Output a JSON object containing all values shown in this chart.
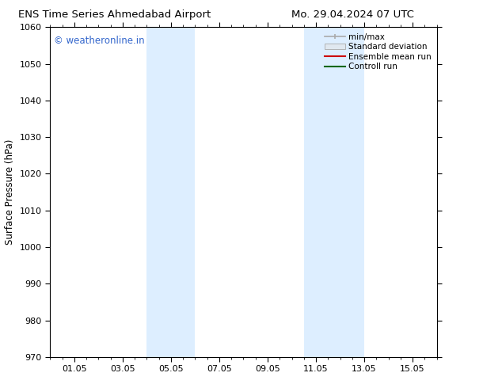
{
  "title_left": "ENS Time Series Ahmedabad Airport",
  "title_right": "Mo. 29.04.2024 07 UTC",
  "ylabel": "Surface Pressure (hPa)",
  "xlim": [
    0,
    16
  ],
  "ylim": [
    970,
    1060
  ],
  "yticks": [
    970,
    980,
    990,
    1000,
    1010,
    1020,
    1030,
    1040,
    1050,
    1060
  ],
  "xtick_positions": [
    1,
    3,
    5,
    7,
    9,
    11,
    13,
    15
  ],
  "xtick_labels": [
    "01.05",
    "03.05",
    "05.05",
    "07.05",
    "09.05",
    "11.05",
    "13.05",
    "15.05"
  ],
  "shaded_bands": [
    {
      "x_start": 4.0,
      "x_end": 6.0
    },
    {
      "x_start": 10.5,
      "x_end": 13.0
    }
  ],
  "shaded_color": "#ddeeff",
  "background_color": "#ffffff",
  "watermark_text": "© weatheronline.in",
  "watermark_color": "#3366cc",
  "legend_entries": [
    {
      "label": "min/max",
      "color": "#aaaaaa",
      "style": "minmax"
    },
    {
      "label": "Standard deviation",
      "color": "#cccccc",
      "style": "stddev"
    },
    {
      "label": "Ensemble mean run",
      "color": "#cc0000",
      "style": "line"
    },
    {
      "label": "Controll run",
      "color": "#006600",
      "style": "line"
    }
  ],
  "spine_color": "#000000",
  "title_fontsize": 9.5,
  "tick_fontsize": 8,
  "legend_fontsize": 7.5,
  "watermark_fontsize": 8.5,
  "ylabel_fontsize": 8.5
}
